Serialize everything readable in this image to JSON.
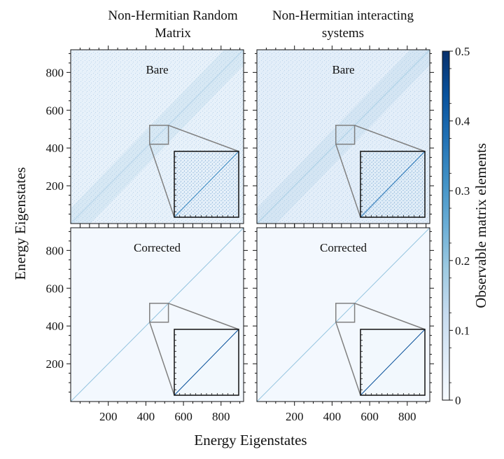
{
  "figure": {
    "xlabel": "Energy Eigenstates",
    "ylabel": "Energy Eigenstates",
    "colorbar_label": "Observable matrix elements"
  },
  "chart_data": {
    "type": "heatmap",
    "columns": [
      {
        "title_lines": [
          "Non-Hermitian Random",
          "Matrix"
        ]
      },
      {
        "title_lines": [
          "Non-Hermitian interacting",
          "systems"
        ]
      }
    ],
    "rows": [
      {
        "label": "Bare"
      },
      {
        "label": "Corrected"
      }
    ],
    "panels": [
      {
        "column": 0,
        "row": 0,
        "label": "Bare",
        "background_level": 0.04,
        "diagonal_level": 0.15
      },
      {
        "column": 1,
        "row": 0,
        "label": "Bare",
        "background_level": 0.05,
        "diagonal_level": 0.17
      },
      {
        "column": 0,
        "row": 1,
        "label": "Corrected",
        "background_level": 0.01,
        "diagonal_level": 0.2
      },
      {
        "column": 1,
        "row": 1,
        "label": "Corrected",
        "background_level": 0.01,
        "diagonal_level": 0.2
      }
    ],
    "xlim": [
      0,
      920
    ],
    "ylim": [
      0,
      920
    ],
    "x_ticks": [
      200,
      400,
      600,
      800
    ],
    "y_ticks": [
      200,
      400,
      600,
      800
    ],
    "zoom_window": [
      420,
      520
    ],
    "colorbar": {
      "range": [
        0,
        0.5
      ],
      "ticks": [
        "0",
        "0.1",
        "0.2",
        "0.3",
        "0.4",
        "0.5"
      ],
      "colormap": "Blues",
      "color_low": "#f7fbff",
      "color_high": "#08306b"
    },
    "grid": false,
    "legend": "none"
  }
}
